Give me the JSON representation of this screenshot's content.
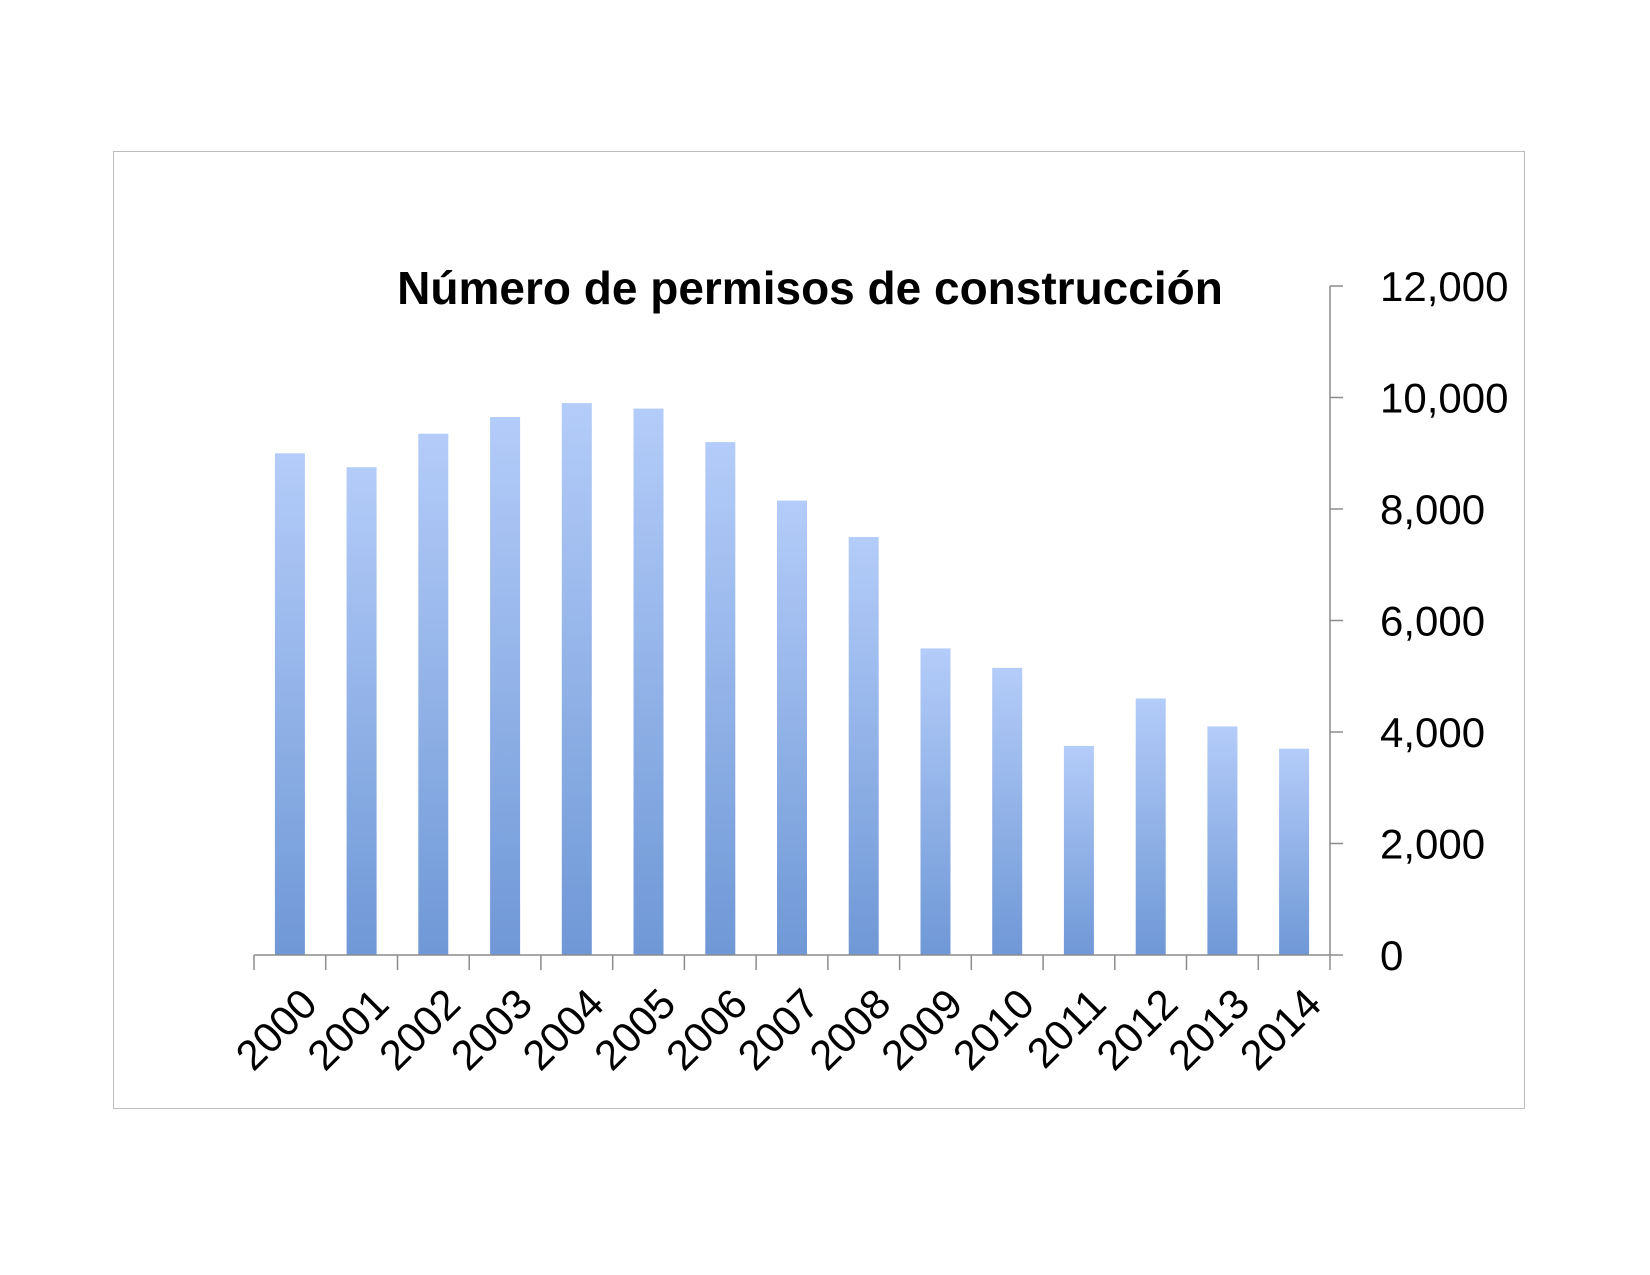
{
  "chart_data": {
    "type": "bar",
    "title": "Número de permisos de construcción",
    "xlabel": "",
    "ylabel": "",
    "categories": [
      "2000",
      "2001",
      "2002",
      "2003",
      "2004",
      "2005",
      "2006",
      "2007",
      "2008",
      "2009",
      "2010",
      "2011",
      "2012",
      "2013",
      "2014"
    ],
    "values": [
      9000,
      8750,
      9350,
      9650,
      9900,
      9800,
      9200,
      8150,
      7500,
      5500,
      5150,
      3750,
      4600,
      4100,
      3700
    ],
    "ylim": [
      0,
      12000
    ],
    "yticks": [
      "0",
      "2,000",
      "4,000",
      "6,000",
      "8,000",
      "10,000",
      "12,000"
    ],
    "y_axis_side": "right",
    "x_tick_rotation": "-45deg",
    "grid": false,
    "legend": "none",
    "bar_color_top": "#b4ccf9",
    "bar_color_bottom": "#6f98d6",
    "axis_color": "#8c8c8c",
    "frame_color": "#bdbdbd"
  }
}
